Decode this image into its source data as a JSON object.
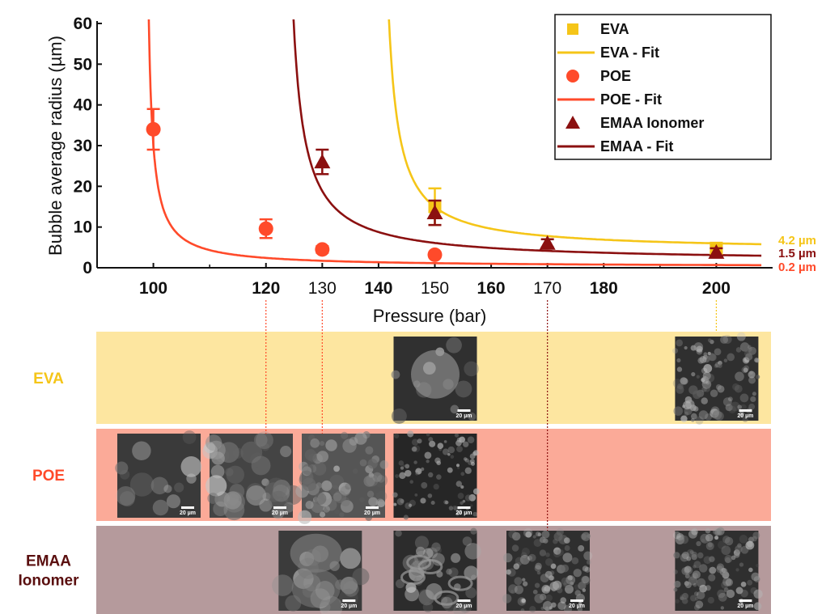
{
  "chart_data": {
    "type": "scatter",
    "xlabel": "Pressure (bar)",
    "ylabel": "Bubble average radius (µm)",
    "xlim": [
      90,
      210
    ],
    "ylim": [
      0,
      60
    ],
    "x_ticks": [
      {
        "value": 100,
        "label": "100",
        "bold": true
      },
      {
        "value": 120,
        "label": "120",
        "bold": true
      },
      {
        "value": 130,
        "label": "130",
        "bold": false
      },
      {
        "value": 140,
        "label": "140",
        "bold": true
      },
      {
        "value": 150,
        "label": "150",
        "bold": false
      },
      {
        "value": 160,
        "label": "160",
        "bold": true
      },
      {
        "value": 170,
        "label": "170",
        "bold": false
      },
      {
        "value": 180,
        "label": "180",
        "bold": true
      },
      {
        "value": 200,
        "label": "200",
        "bold": true
      }
    ],
    "y_ticks": [
      0,
      10,
      20,
      30,
      40,
      50,
      60
    ],
    "series": [
      {
        "name": "EVA",
        "marker": "square",
        "color": "#f5c518",
        "points": [
          {
            "x": 150,
            "y": 15.0,
            "err": 4.5
          },
          {
            "x": 200,
            "y": 4.8,
            "err": 0.8
          }
        ]
      },
      {
        "name": "POE",
        "marker": "circle",
        "color": "#ff4a2a",
        "points": [
          {
            "x": 100,
            "y": 34.0,
            "err": 5.0
          },
          {
            "x": 120,
            "y": 9.6,
            "err": 2.3
          },
          {
            "x": 130,
            "y": 4.5,
            "err": 0.8
          },
          {
            "x": 150,
            "y": 3.2,
            "err": 0.6
          }
        ]
      },
      {
        "name": "EMAA Ionomer",
        "marker": "triangle",
        "color": "#8b1010",
        "points": [
          {
            "x": 130,
            "y": 26.0,
            "err": 3.0
          },
          {
            "x": 150,
            "y": 13.5,
            "err": 3.0
          },
          {
            "x": 170,
            "y": 6.0,
            "err": 1.0
          },
          {
            "x": 200,
            "y": 3.8,
            "err": 1.0
          }
        ]
      }
    ],
    "fits": [
      {
        "name": "EVA - Fit",
        "color": "#f5c518",
        "x0": 139.95,
        "a": 108,
        "y_inf": 4.2,
        "x_end": 208
      },
      {
        "name": "POE - Fit",
        "color": "#ff4a2a",
        "x0": 98.4,
        "a": 48,
        "y_inf": 0.2,
        "x_end": 208
      },
      {
        "name": "EMAA - Fit",
        "color": "#8b1010",
        "x0": 122.8,
        "a": 125,
        "y_inf": 1.5,
        "x_end": 208
      }
    ],
    "asymptote_labels": [
      {
        "text": "4.2 µm",
        "y": 6.8,
        "color": "#f5c518"
      },
      {
        "text": "1.5 µm",
        "y": 3.6,
        "color": "#8b1010"
      },
      {
        "text": "0.2 µm",
        "y": 0.2,
        "color": "#ff4a2a"
      }
    ],
    "legend": [
      {
        "label": "EVA",
        "kind": "square",
        "color": "#f5c518"
      },
      {
        "label": "EVA - Fit",
        "kind": "line",
        "color": "#f5c518"
      },
      {
        "label": "POE",
        "kind": "circle",
        "color": "#ff4a2a"
      },
      {
        "label": "POE - Fit",
        "kind": "line",
        "color": "#ff4a2a"
      },
      {
        "label": "EMAA Ionomer",
        "kind": "triangle",
        "color": "#8b1010"
      },
      {
        "label": "EMAA - Fit",
        "kind": "line",
        "color": "#8b1010"
      }
    ],
    "legend_position": "top-right",
    "grid": false
  },
  "micrograph_panels": {
    "scale_bar_label": "20 µm",
    "rows": [
      {
        "label": "EVA",
        "label_color": "#f5c518",
        "band_color": "#fde6a0",
        "images": [
          {
            "pressure": 150,
            "pattern": "single-bubble"
          },
          {
            "pressure": 200,
            "pattern": "fine-cells"
          }
        ]
      },
      {
        "label": "POE",
        "label_color": "#ff4a2a",
        "band_color": "#fbaa98",
        "images": [
          {
            "pressure": 100,
            "pattern": "smooth"
          },
          {
            "pressure": 120,
            "pattern": "coarse"
          },
          {
            "pressure": 130,
            "pattern": "medium"
          },
          {
            "pressure": 150,
            "pattern": "fine-dark"
          }
        ]
      },
      {
        "label": "EMAA\nIonomer",
        "label_color": "#5a0f0f",
        "band_color": "#b59a9c",
        "images": [
          {
            "pressure": 130,
            "pattern": "large-bubbles"
          },
          {
            "pressure": 150,
            "pattern": "swirls"
          },
          {
            "pressure": 170,
            "pattern": "fine-cells"
          },
          {
            "pressure": 200,
            "pattern": "fine-cells"
          }
        ]
      }
    ],
    "guides": [
      {
        "pressure": 120,
        "color": "#ff4a2a",
        "from_row": 0,
        "to_row": 1
      },
      {
        "pressure": 130,
        "color": "#ff4a2a",
        "from_row": 0,
        "to_row": 1
      },
      {
        "pressure": 170,
        "color": "#8b1010",
        "from_row": 0,
        "to_row": 2
      },
      {
        "pressure": 200,
        "color": "#f5c518",
        "from_row": 0,
        "to_row": 0
      }
    ]
  }
}
